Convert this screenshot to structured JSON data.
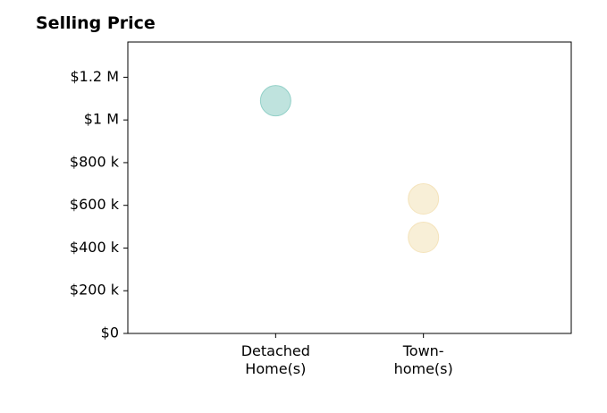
{
  "chart_data": {
    "type": "scatter",
    "title": "Selling Price",
    "xlabel": "",
    "ylabel": "",
    "categories": [
      {
        "line1": "Detached",
        "line2": "Home(s)"
      },
      {
        "line1": "Town-",
        "line2": "home(s)"
      }
    ],
    "ylim": [
      0,
      1365000
    ],
    "xlim": [
      -1,
      2
    ],
    "y_ticks": [
      {
        "value": 0,
        "label": "$0"
      },
      {
        "value": 200000,
        "label": "$200 k"
      },
      {
        "value": 400000,
        "label": "$400 k"
      },
      {
        "value": 600000,
        "label": "$600 k"
      },
      {
        "value": 800000,
        "label": "$800 k"
      },
      {
        "value": 1000000,
        "label": "$1 M"
      },
      {
        "value": 1200000,
        "label": "$1.2 M"
      }
    ],
    "points": [
      {
        "category": 0,
        "value": 1090000,
        "color": "#80c8be"
      },
      {
        "category": 1,
        "value": 630000,
        "color": "#f2dfb0"
      },
      {
        "category": 1,
        "value": 450000,
        "color": "#f2dfb0"
      }
    ],
    "grid": false,
    "legend": "none"
  }
}
